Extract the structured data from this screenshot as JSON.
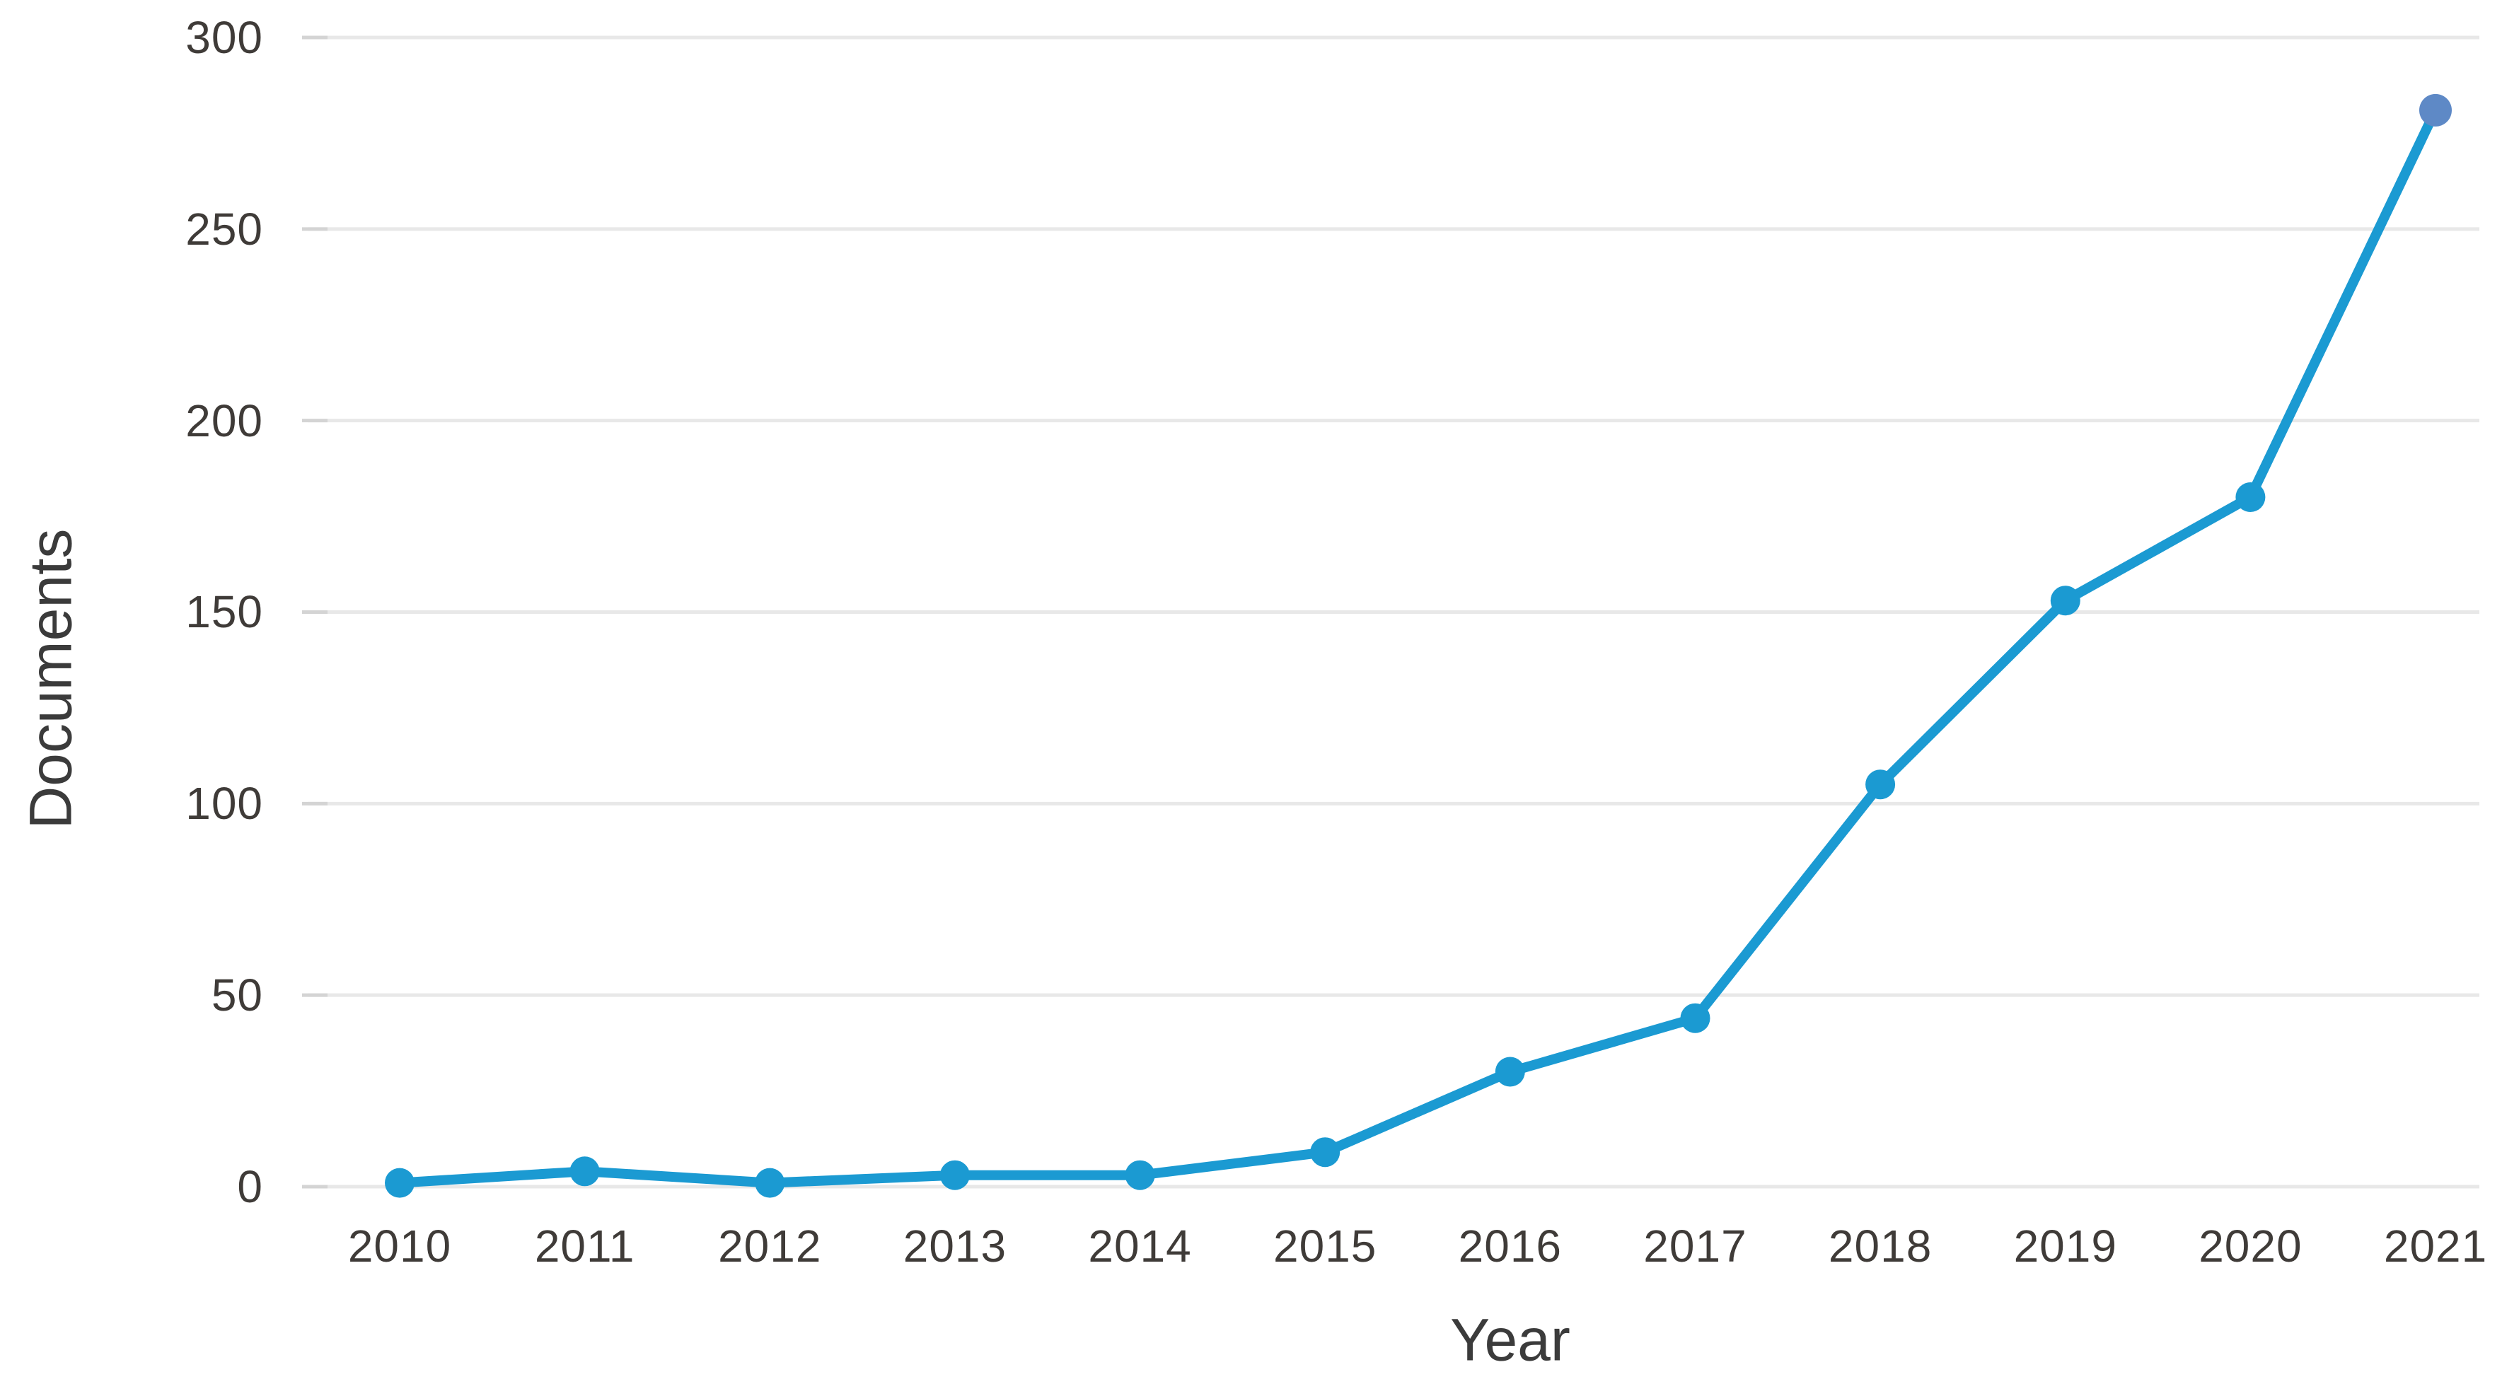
{
  "chart_data": {
    "type": "line",
    "title": "",
    "xlabel": "Year",
    "ylabel": "Documents",
    "x": [
      "2010",
      "2011",
      "2012",
      "2013",
      "2014",
      "2015",
      "2016",
      "2017",
      "2018",
      "2019",
      "2020",
      "2021"
    ],
    "series": [
      {
        "name": "Documents",
        "values": [
          1,
          4,
          1,
          3,
          3,
          9,
          30,
          44,
          105,
          153,
          180,
          281
        ]
      }
    ],
    "ylim": [
      0,
      300
    ],
    "yticks": [
      0,
      50,
      100,
      150,
      200,
      250,
      300
    ],
    "grid": true,
    "legend_position": "none",
    "colors": {
      "line": "#1b9ad2",
      "marker": "#1b9ad2",
      "last_marker": "#5e89c6",
      "gridline": "#e8e8e8",
      "tick_dash": "#d4d4d4",
      "tick_text": "#3f3b38",
      "axis_title_text": "#3b3b3b",
      "background": "#ffffff"
    }
  }
}
